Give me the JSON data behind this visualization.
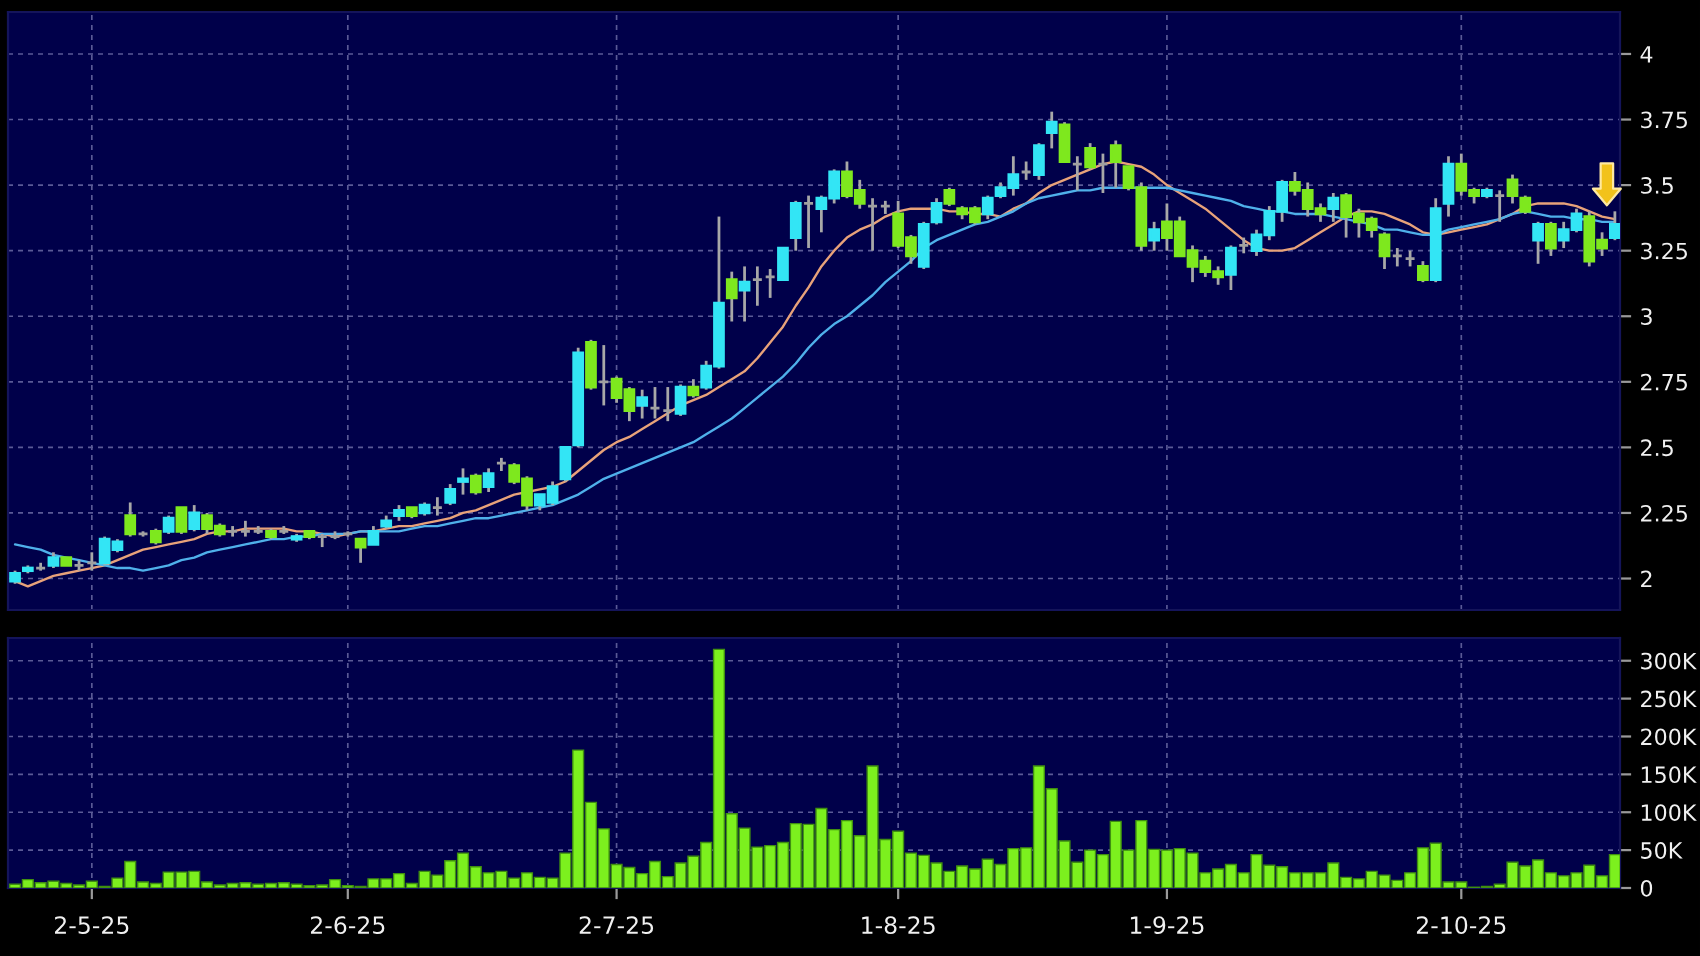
{
  "chart_data": [
    {
      "type": "candlestick",
      "categories": [
        null,
        null,
        null,
        null,
        null,
        null,
        null,
        null,
        null,
        null,
        null,
        null,
        null,
        null,
        null,
        null,
        null,
        null,
        null,
        null,
        null,
        null,
        null,
        null,
        null,
        null,
        null,
        null,
        null,
        null,
        null,
        null,
        null,
        null,
        null,
        null,
        null,
        null,
        null,
        null,
        null,
        null,
        null,
        null,
        null,
        null,
        null,
        null,
        null,
        null,
        null,
        null,
        null,
        null,
        null,
        null,
        null,
        null,
        null,
        null,
        null,
        null,
        null,
        null,
        null,
        null,
        null,
        null,
        null,
        null,
        null,
        null,
        null,
        null,
        null,
        null,
        null,
        null,
        null,
        null,
        null,
        null,
        null,
        null,
        null,
        null,
        null,
        null,
        null,
        null,
        null,
        null,
        null,
        null,
        null,
        null,
        null,
        null,
        null,
        null,
        null,
        null,
        null,
        null,
        null,
        null,
        null,
        null,
        null,
        null,
        null,
        null,
        null,
        null,
        null,
        null,
        null,
        null,
        null,
        null,
        null,
        null,
        null,
        null,
        null,
        null
      ],
      "ohlc": [
        [
          1.99,
          2.03,
          1.98,
          2.02
        ],
        [
          2.03,
          2.05,
          2.02,
          2.04
        ],
        [
          2.04,
          2.06,
          2.03,
          2.04
        ],
        [
          2.05,
          2.1,
          2.04,
          2.08
        ],
        [
          2.08,
          2.08,
          2.05,
          2.05
        ],
        [
          2.05,
          2.07,
          2.03,
          2.05
        ],
        [
          2.06,
          2.1,
          2.03,
          2.06
        ],
        [
          2.06,
          2.16,
          2.05,
          2.15
        ],
        [
          2.11,
          2.15,
          2.1,
          2.14
        ],
        [
          2.24,
          2.29,
          2.16,
          2.17
        ],
        [
          2.17,
          2.18,
          2.16,
          2.17
        ],
        [
          2.18,
          2.19,
          2.13,
          2.14
        ],
        [
          2.18,
          2.24,
          2.17,
          2.23
        ],
        [
          2.27,
          2.27,
          2.17,
          2.18
        ],
        [
          2.19,
          2.28,
          2.18,
          2.25
        ],
        [
          2.24,
          2.25,
          2.17,
          2.19
        ],
        [
          2.2,
          2.21,
          2.16,
          2.17
        ],
        [
          2.18,
          2.2,
          2.16,
          2.18
        ],
        [
          2.18,
          2.22,
          2.16,
          2.18
        ],
        [
          2.18,
          2.2,
          2.17,
          2.18
        ],
        [
          2.18,
          2.19,
          2.15,
          2.16
        ],
        [
          2.18,
          2.2,
          2.17,
          2.18
        ],
        [
          2.15,
          2.17,
          2.14,
          2.16
        ],
        [
          2.18,
          2.18,
          2.15,
          2.16
        ],
        [
          2.16,
          2.17,
          2.12,
          2.16
        ],
        [
          2.16,
          2.18,
          2.15,
          2.16
        ],
        [
          2.17,
          2.18,
          2.16,
          2.17
        ],
        [
          2.15,
          2.15,
          2.06,
          2.12
        ],
        [
          2.13,
          2.2,
          2.13,
          2.18
        ],
        [
          2.2,
          2.24,
          2.19,
          2.22
        ],
        [
          2.24,
          2.28,
          2.22,
          2.26
        ],
        [
          2.27,
          2.27,
          2.23,
          2.24
        ],
        [
          2.25,
          2.29,
          2.24,
          2.28
        ],
        [
          2.27,
          2.31,
          2.24,
          2.27
        ],
        [
          2.29,
          2.36,
          2.28,
          2.34
        ],
        [
          2.37,
          2.42,
          2.32,
          2.38
        ],
        [
          2.39,
          2.4,
          2.32,
          2.33
        ],
        [
          2.35,
          2.42,
          2.33,
          2.4
        ],
        [
          2.44,
          2.46,
          2.41,
          2.44
        ],
        [
          2.43,
          2.44,
          2.36,
          2.37
        ],
        [
          2.38,
          2.39,
          2.26,
          2.28
        ],
        [
          2.28,
          2.32,
          2.26,
          2.32
        ],
        [
          2.29,
          2.37,
          2.28,
          2.35
        ],
        [
          2.38,
          2.5,
          2.37,
          2.5
        ],
        [
          2.51,
          2.88,
          2.5,
          2.86
        ],
        [
          2.9,
          2.91,
          2.72,
          2.73
        ],
        [
          2.75,
          2.89,
          2.66,
          2.75
        ],
        [
          2.76,
          2.77,
          2.67,
          2.69
        ],
        [
          2.72,
          2.73,
          2.6,
          2.64
        ],
        [
          2.66,
          2.72,
          2.61,
          2.69
        ],
        [
          2.65,
          2.73,
          2.61,
          2.65
        ],
        [
          2.64,
          2.73,
          2.6,
          2.64
        ],
        [
          2.63,
          2.74,
          2.62,
          2.73
        ],
        [
          2.73,
          2.76,
          2.69,
          2.7
        ],
        [
          2.73,
          2.83,
          2.72,
          2.81
        ],
        [
          2.81,
          3.38,
          2.8,
          3.05
        ],
        [
          3.14,
          3.17,
          2.98,
          3.07
        ],
        [
          3.1,
          3.19,
          2.98,
          3.13
        ],
        [
          3.14,
          3.19,
          3.04,
          3.14
        ],
        [
          3.15,
          3.18,
          3.07,
          3.15
        ],
        [
          3.14,
          3.26,
          3.14,
          3.26
        ],
        [
          3.3,
          3.44,
          3.25,
          3.43
        ],
        [
          3.43,
          3.46,
          3.26,
          3.43
        ],
        [
          3.41,
          3.46,
          3.32,
          3.45
        ],
        [
          3.45,
          3.56,
          3.43,
          3.55
        ],
        [
          3.55,
          3.59,
          3.45,
          3.46
        ],
        [
          3.48,
          3.52,
          3.41,
          3.43
        ],
        [
          3.42,
          3.45,
          3.25,
          3.42
        ],
        [
          3.42,
          3.44,
          3.39,
          3.42
        ],
        [
          3.39,
          3.44,
          3.26,
          3.27
        ],
        [
          3.3,
          3.31,
          3.2,
          3.23
        ],
        [
          3.19,
          3.36,
          3.18,
          3.35
        ],
        [
          3.36,
          3.45,
          3.35,
          3.43
        ],
        [
          3.48,
          3.49,
          3.42,
          3.43
        ],
        [
          3.41,
          3.42,
          3.37,
          3.39
        ],
        [
          3.41,
          3.42,
          3.35,
          3.36
        ],
        [
          3.39,
          3.46,
          3.37,
          3.45
        ],
        [
          3.46,
          3.51,
          3.45,
          3.49
        ],
        [
          3.49,
          3.61,
          3.46,
          3.54
        ],
        [
          3.55,
          3.59,
          3.52,
          3.55
        ],
        [
          3.54,
          3.66,
          3.52,
          3.65
        ],
        [
          3.7,
          3.78,
          3.64,
          3.74
        ],
        [
          3.73,
          3.74,
          3.59,
          3.59
        ],
        [
          3.58,
          3.61,
          3.48,
          3.58
        ],
        [
          3.64,
          3.66,
          3.56,
          3.57
        ],
        [
          3.58,
          3.62,
          3.47,
          3.58
        ],
        [
          3.65,
          3.67,
          3.49,
          3.59
        ],
        [
          3.57,
          3.57,
          3.48,
          3.49
        ],
        [
          3.49,
          3.51,
          3.25,
          3.27
        ],
        [
          3.29,
          3.36,
          3.25,
          3.33
        ],
        [
          3.36,
          3.43,
          3.25,
          3.3
        ],
        [
          3.36,
          3.38,
          3.23,
          3.23
        ],
        [
          3.25,
          3.27,
          3.13,
          3.19
        ],
        [
          3.21,
          3.23,
          3.15,
          3.17
        ],
        [
          3.17,
          3.19,
          3.12,
          3.15
        ],
        [
          3.16,
          3.27,
          3.1,
          3.26
        ],
        [
          3.27,
          3.3,
          3.24,
          3.27
        ],
        [
          3.25,
          3.33,
          3.23,
          3.31
        ],
        [
          3.31,
          3.42,
          3.29,
          3.4
        ],
        [
          3.4,
          3.52,
          3.36,
          3.51
        ],
        [
          3.51,
          3.55,
          3.46,
          3.48
        ],
        [
          3.48,
          3.51,
          3.38,
          3.41
        ],
        [
          3.41,
          3.43,
          3.36,
          3.39
        ],
        [
          3.41,
          3.47,
          3.36,
          3.45
        ],
        [
          3.46,
          3.47,
          3.3,
          3.38
        ],
        [
          3.39,
          3.41,
          3.3,
          3.36
        ],
        [
          3.37,
          3.38,
          3.3,
          3.33
        ],
        [
          3.31,
          3.32,
          3.18,
          3.23
        ],
        [
          3.23,
          3.26,
          3.19,
          3.23
        ],
        [
          3.22,
          3.25,
          3.19,
          3.22
        ],
        [
          3.19,
          3.21,
          3.13,
          3.14
        ],
        [
          3.14,
          3.45,
          3.13,
          3.41
        ],
        [
          3.43,
          3.61,
          3.38,
          3.58
        ],
        [
          3.58,
          3.62,
          3.46,
          3.48
        ],
        [
          3.48,
          3.49,
          3.43,
          3.46
        ],
        [
          3.46,
          3.49,
          3.45,
          3.48
        ],
        [
          3.46,
          3.48,
          3.36,
          3.46
        ],
        [
          3.52,
          3.54,
          3.43,
          3.46
        ],
        [
          3.45,
          3.46,
          3.39,
          3.4
        ],
        [
          3.29,
          3.36,
          3.2,
          3.35
        ],
        [
          3.35,
          3.36,
          3.23,
          3.26
        ],
        [
          3.29,
          3.36,
          3.26,
          3.33
        ],
        [
          3.33,
          3.41,
          3.32,
          3.39
        ],
        [
          3.38,
          3.4,
          3.19,
          3.21
        ],
        [
          3.29,
          3.32,
          3.23,
          3.26
        ],
        [
          3.3,
          3.4,
          3.29,
          3.35
        ]
      ],
      "colors": [
        "#33e5f5",
        "#33e5f5",
        "#a0a0a0",
        "#33e5f5",
        "#7ee81e",
        "#a0a0a0",
        "#a0a0a0",
        "#33e5f5",
        "#33e5f5",
        "#7ee81e",
        "#a0a0a0",
        "#7ee81e",
        "#33e5f5",
        "#7ee81e",
        "#33e5f5",
        "#7ee81e",
        "#7ee81e",
        "#a0a0a0",
        "#a0a0a0",
        "#a0a0a0",
        "#7ee81e",
        "#a0a0a0",
        "#33e5f5",
        "#7ee81e",
        "#a0a0a0",
        "#a0a0a0",
        "#a0a0a0",
        "#7ee81e",
        "#33e5f5",
        "#33e5f5",
        "#33e5f5",
        "#7ee81e",
        "#33e5f5",
        "#a0a0a0",
        "#33e5f5",
        "#33e5f5",
        "#7ee81e",
        "#33e5f5",
        "#a0a0a0",
        "#7ee81e",
        "#7ee81e",
        "#33e5f5",
        "#33e5f5",
        "#33e5f5",
        "#33e5f5",
        "#7ee81e",
        "#a0a0a0",
        "#7ee81e",
        "#7ee81e",
        "#33e5f5",
        "#a0a0a0",
        "#a0a0a0",
        "#33e5f5",
        "#7ee81e",
        "#33e5f5",
        "#33e5f5",
        "#7ee81e",
        "#33e5f5",
        "#a0a0a0",
        "#a0a0a0",
        "#33e5f5",
        "#33e5f5",
        "#a0a0a0",
        "#33e5f5",
        "#33e5f5",
        "#7ee81e",
        "#7ee81e",
        "#a0a0a0",
        "#a0a0a0",
        "#7ee81e",
        "#7ee81e",
        "#33e5f5",
        "#33e5f5",
        "#7ee81e",
        "#7ee81e",
        "#7ee81e",
        "#33e5f5",
        "#33e5f5",
        "#33e5f5",
        "#a0a0a0",
        "#33e5f5",
        "#33e5f5",
        "#7ee81e",
        "#a0a0a0",
        "#7ee81e",
        "#a0a0a0",
        "#7ee81e",
        "#7ee81e",
        "#7ee81e",
        "#33e5f5",
        "#7ee81e",
        "#7ee81e",
        "#7ee81e",
        "#7ee81e",
        "#7ee81e",
        "#33e5f5",
        "#a0a0a0",
        "#33e5f5",
        "#33e5f5",
        "#33e5f5",
        "#7ee81e",
        "#7ee81e",
        "#7ee81e",
        "#33e5f5",
        "#7ee81e",
        "#7ee81e",
        "#7ee81e",
        "#7ee81e",
        "#a0a0a0",
        "#a0a0a0",
        "#7ee81e",
        "#33e5f5",
        "#33e5f5",
        "#7ee81e",
        "#7ee81e",
        "#33e5f5",
        "#a0a0a0",
        "#7ee81e",
        "#7ee81e",
        "#33e5f5",
        "#7ee81e",
        "#33e5f5",
        "#33e5f5",
        "#7ee81e",
        "#7ee81e",
        "#33e5f5"
      ],
      "series": [
        {
          "type": "line",
          "color": "#e8a27a",
          "values": [
            1.99,
            1.97,
            1.99,
            2.01,
            2.02,
            2.03,
            2.04,
            2.05,
            2.07,
            2.09,
            2.11,
            2.12,
            2.13,
            2.14,
            2.15,
            2.17,
            2.18,
            2.18,
            2.19,
            2.19,
            2.19,
            2.19,
            2.18,
            2.18,
            2.17,
            2.16,
            2.17,
            2.18,
            2.18,
            2.19,
            2.2,
            2.2,
            2.21,
            2.22,
            2.23,
            2.25,
            2.26,
            2.28,
            2.3,
            2.32,
            2.33,
            2.34,
            2.35,
            2.37,
            2.41,
            2.45,
            2.49,
            2.52,
            2.54,
            2.57,
            2.6,
            2.63,
            2.66,
            2.68,
            2.7,
            2.73,
            2.76,
            2.79,
            2.84,
            2.9,
            2.96,
            3.04,
            3.11,
            3.19,
            3.25,
            3.3,
            3.33,
            3.35,
            3.38,
            3.4,
            3.41,
            3.41,
            3.41,
            3.4,
            3.4,
            3.39,
            3.39,
            3.38,
            3.41,
            3.43,
            3.47,
            3.5,
            3.52,
            3.54,
            3.56,
            3.58,
            3.59,
            3.58,
            3.57,
            3.54,
            3.5,
            3.47,
            3.44,
            3.41,
            3.37,
            3.33,
            3.29,
            3.26,
            3.25,
            3.25,
            3.26,
            3.29,
            3.32,
            3.35,
            3.38,
            3.4,
            3.4,
            3.39,
            3.37,
            3.35,
            3.32,
            3.31,
            3.32,
            3.33,
            3.34,
            3.35,
            3.37,
            3.39,
            3.42,
            3.43,
            3.43,
            3.43,
            3.42,
            3.4,
            3.38,
            3.37
          ]
        },
        {
          "type": "line",
          "color": "#4fb0ea",
          "values": [
            2.13,
            2.12,
            2.11,
            2.09,
            2.08,
            2.07,
            2.06,
            2.05,
            2.04,
            2.04,
            2.03,
            2.04,
            2.05,
            2.07,
            2.08,
            2.1,
            2.11,
            2.12,
            2.13,
            2.14,
            2.15,
            2.15,
            2.16,
            2.16,
            2.17,
            2.17,
            2.17,
            2.18,
            2.18,
            2.18,
            2.18,
            2.19,
            2.2,
            2.2,
            2.21,
            2.22,
            2.23,
            2.23,
            2.24,
            2.25,
            2.26,
            2.27,
            2.28,
            2.3,
            2.32,
            2.35,
            2.38,
            2.4,
            2.42,
            2.44,
            2.46,
            2.48,
            2.5,
            2.52,
            2.55,
            2.58,
            2.61,
            2.65,
            2.69,
            2.73,
            2.77,
            2.82,
            2.88,
            2.93,
            2.97,
            3.0,
            3.04,
            3.08,
            3.13,
            3.17,
            3.21,
            3.26,
            3.29,
            3.31,
            3.33,
            3.35,
            3.36,
            3.38,
            3.4,
            3.43,
            3.45,
            3.46,
            3.47,
            3.48,
            3.48,
            3.49,
            3.49,
            3.49,
            3.49,
            3.49,
            3.49,
            3.48,
            3.47,
            3.46,
            3.45,
            3.44,
            3.42,
            3.41,
            3.4,
            3.4,
            3.39,
            3.39,
            3.39,
            3.38,
            3.37,
            3.36,
            3.35,
            3.33,
            3.33,
            3.32,
            3.31,
            3.31,
            3.33,
            3.34,
            3.35,
            3.36,
            3.37,
            3.39,
            3.4,
            3.39,
            3.38,
            3.38,
            3.37,
            3.37,
            3.36,
            3.36
          ]
        }
      ],
      "ylim": [
        1.88,
        4.16
      ],
      "yticks": [
        2,
        2.25,
        2.5,
        2.75,
        3,
        3.25,
        3.5,
        3.75,
        4
      ],
      "grid": true,
      "tick_labels": "y"
    },
    {
      "type": "bar",
      "categories": [
        null,
        null,
        null,
        null,
        null,
        null,
        "2-5-25",
        null,
        null,
        null,
        null,
        null,
        null,
        null,
        null,
        null,
        null,
        null,
        null,
        null,
        null,
        null,
        null,
        null,
        null,
        null,
        "2-6-25",
        null,
        null,
        null,
        null,
        null,
        null,
        null,
        null,
        null,
        null,
        null,
        null,
        null,
        null,
        null,
        null,
        null,
        null,
        null,
        null,
        "2-7-25",
        null,
        null,
        null,
        null,
        null,
        null,
        null,
        null,
        null,
        null,
        null,
        null,
        null,
        null,
        null,
        null,
        null,
        null,
        null,
        null,
        null,
        "1-8-25",
        null,
        null,
        null,
        null,
        null,
        null,
        null,
        null,
        null,
        null,
        null,
        null,
        null,
        null,
        null,
        null,
        null,
        null,
        null,
        null,
        "1-9-25",
        null,
        null,
        null,
        null,
        null,
        null,
        null,
        null,
        null,
        null,
        null,
        null,
        null,
        null,
        null,
        null,
        null,
        null,
        null,
        null,
        null,
        null,
        "2-10-25",
        null,
        null,
        null,
        null,
        null,
        null,
        null,
        null,
        null,
        null,
        null,
        null
      ],
      "values": [
        5000,
        11000,
        7000,
        9000,
        6000,
        4000,
        9000,
        2000,
        13000,
        35000,
        8000,
        6000,
        21000,
        21000,
        22000,
        8000,
        4000,
        6000,
        7000,
        5000,
        6000,
        7000,
        5000,
        3000,
        4000,
        11000,
        3000,
        2000,
        12000,
        12000,
        19000,
        6000,
        22000,
        17000,
        36000,
        46000,
        28000,
        20000,
        22000,
        13000,
        20000,
        14000,
        13000,
        46000,
        182000,
        113000,
        78000,
        31000,
        27000,
        19000,
        35000,
        15000,
        33000,
        42000,
        60000,
        315000,
        98000,
        79000,
        54000,
        56000,
        60000,
        85000,
        84000,
        105000,
        77000,
        89000,
        69000,
        161000,
        64000,
        75000,
        46000,
        43000,
        33000,
        22000,
        29000,
        25000,
        38000,
        31000,
        52000,
        53000,
        161000,
        131000,
        62000,
        34000,
        50000,
        44000,
        88000,
        50000,
        89000,
        51000,
        50000,
        52000,
        46000,
        20000,
        25000,
        31000,
        20000,
        44000,
        30000,
        28000,
        20000,
        20000,
        20000,
        33000,
        14000,
        12000,
        22000,
        17000,
        10000,
        20000,
        53000,
        59000,
        8000,
        8000,
        1000,
        2000,
        5000,
        34000,
        29000,
        37000,
        20000,
        16000,
        20000,
        30000,
        16000,
        44000
      ],
      "color": "#7cf01e",
      "ylim": [
        0,
        330000
      ],
      "yticks": [
        0,
        {
          "value": 50000,
          "label": "50K"
        },
        {
          "value": 100000,
          "label": "100K"
        },
        {
          "value": 150000,
          "label": "150K"
        },
        {
          "value": 200000,
          "label": "200K"
        },
        {
          "value": 250000,
          "label": "250K"
        },
        {
          "value": 300000,
          "label": "300K"
        }
      ],
      "grid": true
    }
  ]
}
